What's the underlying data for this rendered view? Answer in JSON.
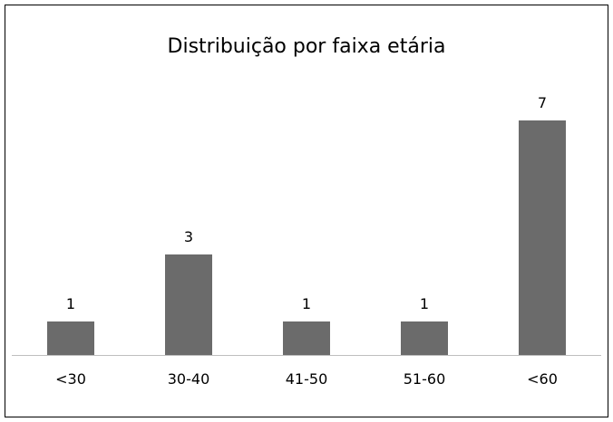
{
  "chart_data": {
    "type": "bar",
    "title": "Distribuição por faixa etária",
    "categories": [
      "<30",
      "30-40",
      "41-50",
      "51-60",
      "<60"
    ],
    "values": [
      1,
      3,
      1,
      1,
      7
    ],
    "data_labels": [
      "1",
      "3",
      "1",
      "1",
      "7"
    ],
    "ylim": [
      0,
      7
    ],
    "grid": false,
    "legend": "none",
    "colors": {
      "bar": "#6b6b6b",
      "axis": "#bfbfbf",
      "frame": "#000000",
      "text": "#000000"
    }
  }
}
